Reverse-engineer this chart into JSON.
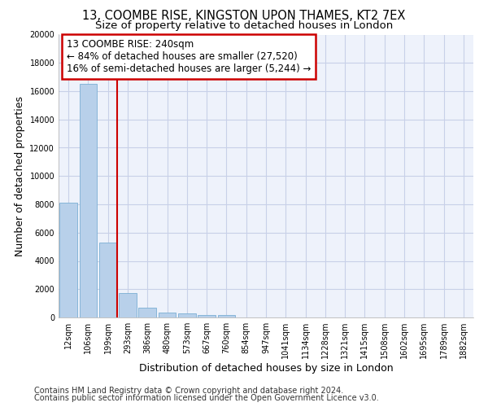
{
  "title_line1": "13, COOMBE RISE, KINGSTON UPON THAMES, KT2 7EX",
  "title_line2": "Size of property relative to detached houses in London",
  "xlabel": "Distribution of detached houses by size in London",
  "ylabel": "Number of detached properties",
  "categories": [
    "12sqm",
    "106sqm",
    "199sqm",
    "293sqm",
    "386sqm",
    "480sqm",
    "573sqm",
    "667sqm",
    "760sqm",
    "854sqm",
    "947sqm",
    "1041sqm",
    "1134sqm",
    "1228sqm",
    "1321sqm",
    "1415sqm",
    "1508sqm",
    "1602sqm",
    "1695sqm",
    "1789sqm",
    "1882sqm"
  ],
  "values": [
    8100,
    16500,
    5300,
    1750,
    700,
    350,
    270,
    200,
    150,
    0,
    0,
    0,
    0,
    0,
    0,
    0,
    0,
    0,
    0,
    0,
    0
  ],
  "bar_color": "#b8d0ea",
  "bar_edge_color": "#7aaed4",
  "vline_color": "#cc0000",
  "annotation_text": "13 COOMBE RISE: 240sqm\n← 84% of detached houses are smaller (27,520)\n16% of semi-detached houses are larger (5,244) →",
  "annotation_box_color": "#ffffff",
  "annotation_box_edge_color": "#cc0000",
  "ylim": [
    0,
    20000
  ],
  "yticks": [
    0,
    2000,
    4000,
    6000,
    8000,
    10000,
    12000,
    14000,
    16000,
    18000,
    20000
  ],
  "footer_line1": "Contains HM Land Registry data © Crown copyright and database right 2024.",
  "footer_line2": "Contains public sector information licensed under the Open Government Licence v3.0.",
  "background_color": "#eef2fb",
  "grid_color": "#c8d0e8",
  "title_fontsize": 10.5,
  "subtitle_fontsize": 9.5,
  "axis_label_fontsize": 9,
  "tick_fontsize": 7,
  "annotation_fontsize": 8.5,
  "footer_fontsize": 7
}
